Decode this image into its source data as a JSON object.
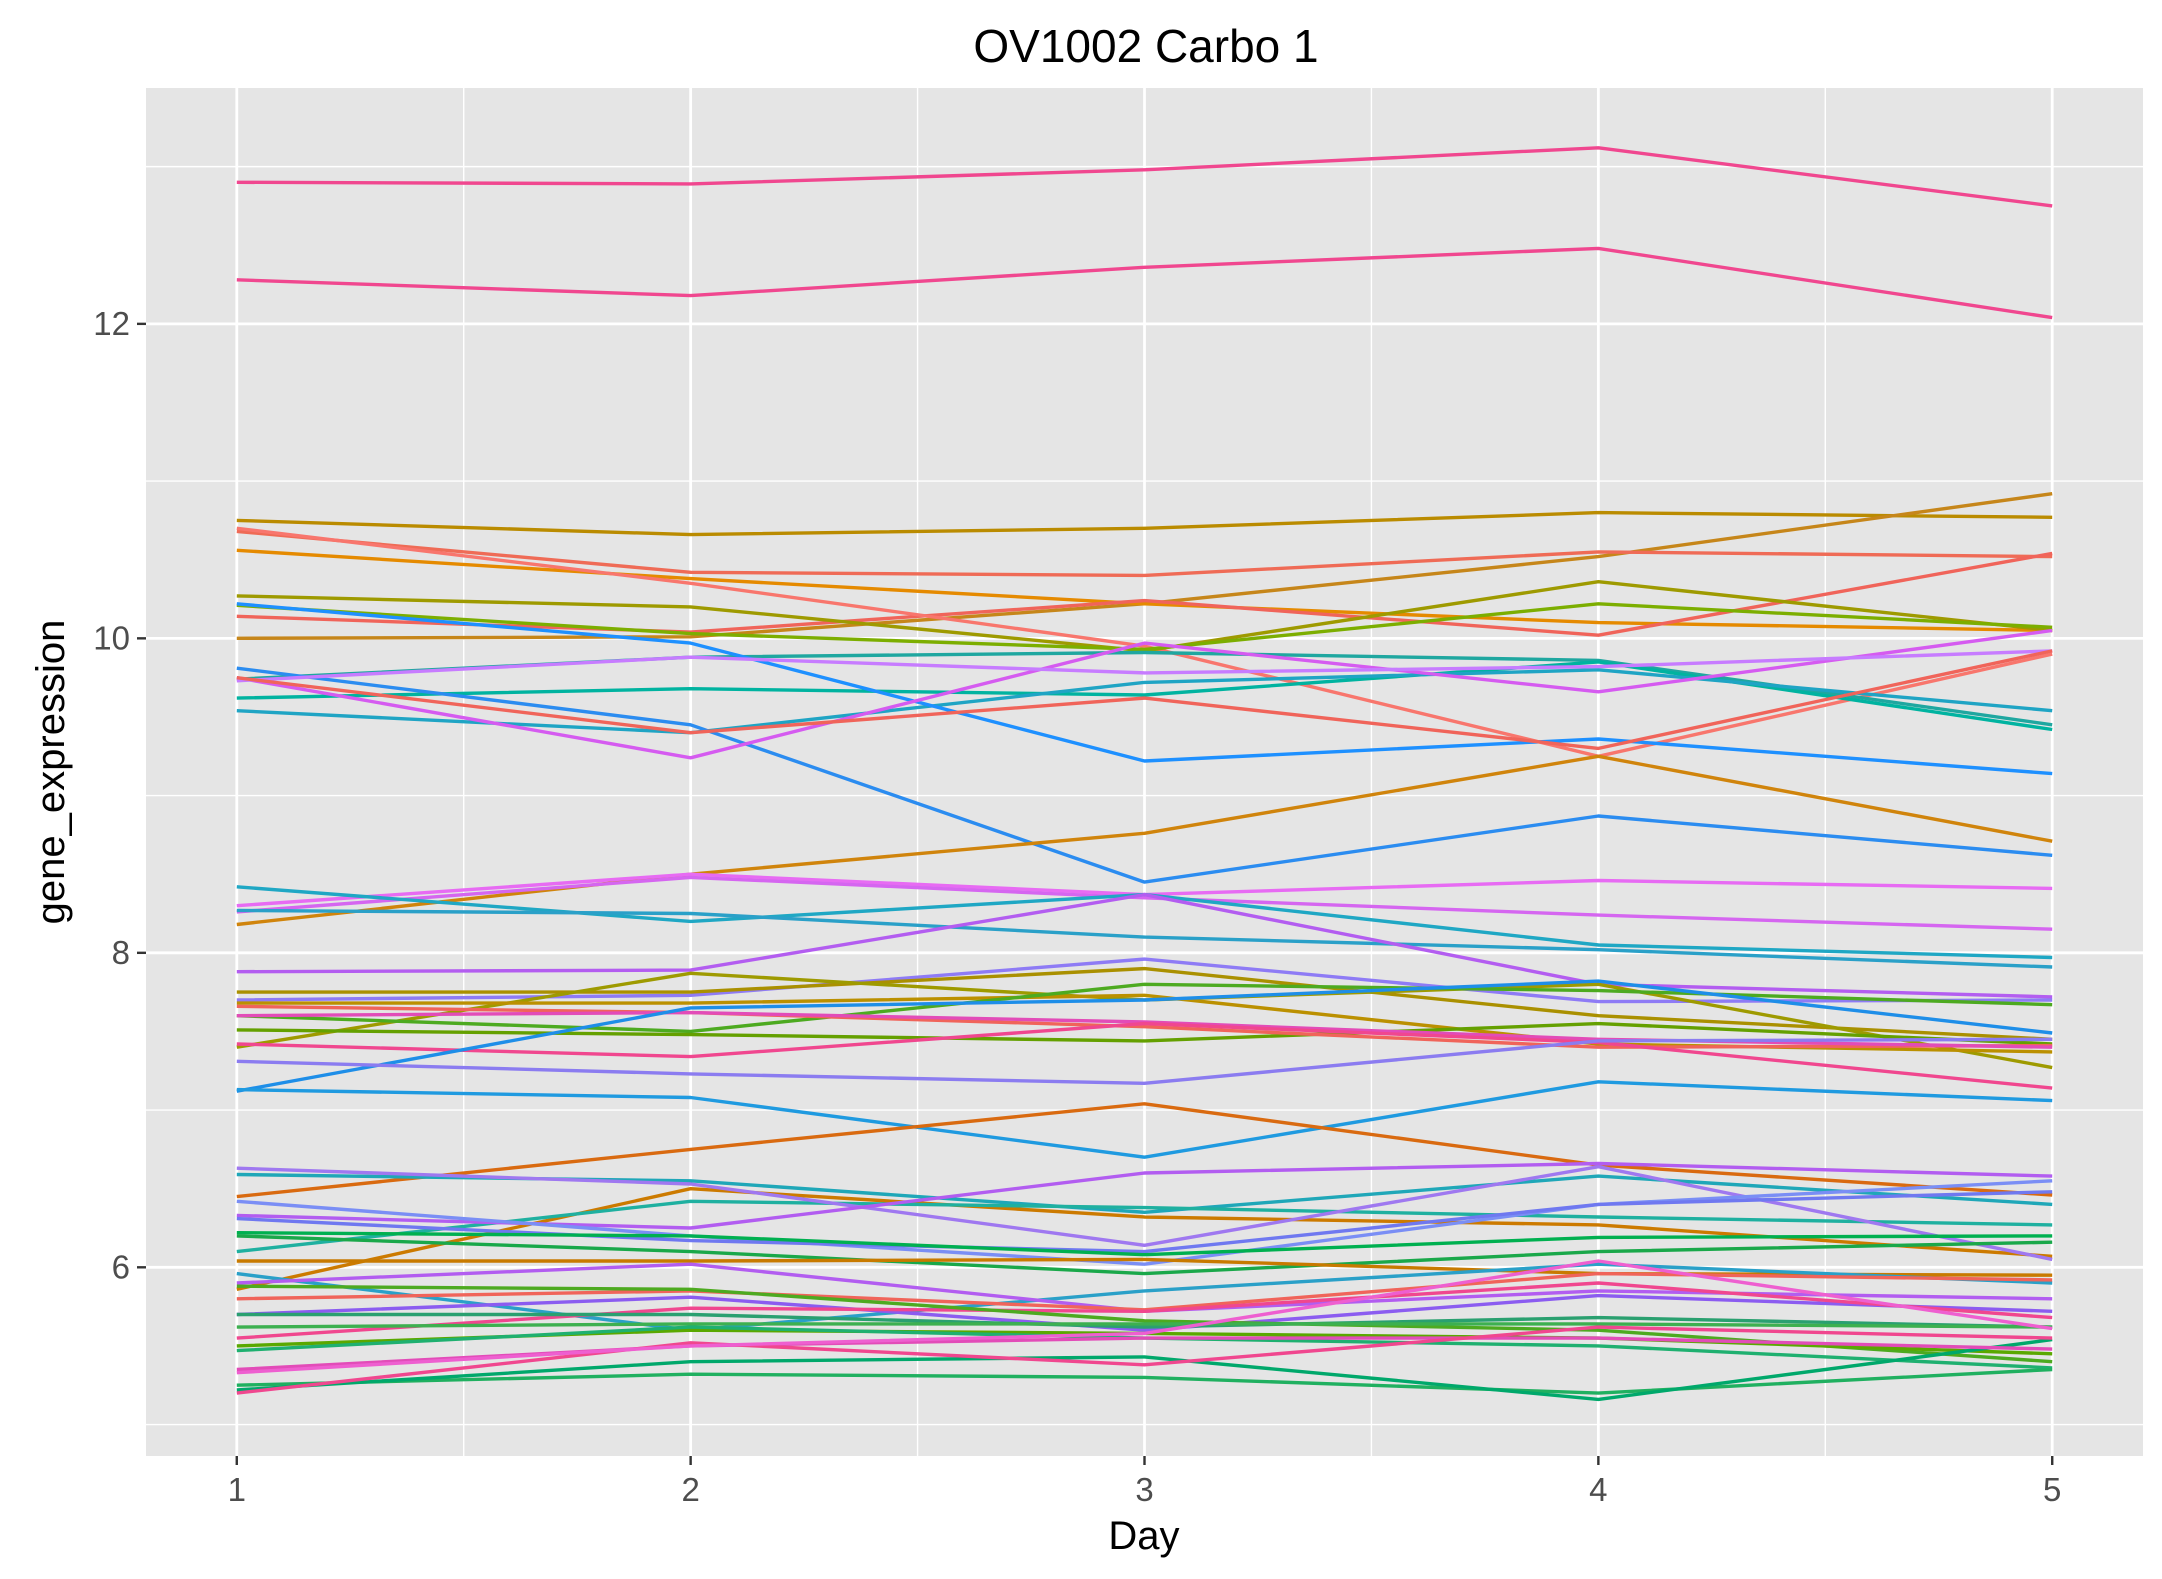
{
  "chart_data": {
    "type": "line",
    "title": "OV1002 Carbo 1",
    "xlabel": "Day",
    "ylabel": "gene_expression",
    "x": [
      1,
      2,
      3,
      4,
      5
    ],
    "xlim": [
      0.8,
      5.2
    ],
    "ylim": [
      4.8,
      13.5
    ],
    "x_ticks": [
      1,
      2,
      3,
      4,
      5
    ],
    "y_ticks": [
      6,
      8,
      10,
      12
    ],
    "grid": true,
    "legend": "none",
    "panel_background": "#e5e5e5",
    "grid_color": "#ffffff",
    "series": [
      {
        "color": "#f0478f",
        "values": [
          12.9,
          12.89,
          12.98,
          13.12,
          12.75
        ]
      },
      {
        "color": "#f0478f",
        "values": [
          12.28,
          12.18,
          12.36,
          12.48,
          12.04
        ]
      },
      {
        "color": "#ba8b00",
        "values": [
          10.75,
          10.66,
          10.7,
          10.8,
          10.77
        ]
      },
      {
        "color": "#c6861a",
        "values": [
          10.0,
          10.01,
          10.22,
          10.52,
          10.92
        ]
      },
      {
        "color": "#e58a00",
        "values": [
          10.56,
          10.38,
          10.22,
          10.1,
          10.05
        ]
      },
      {
        "color": "#ef6b56",
        "values": [
          10.68,
          10.42,
          10.4,
          10.55,
          10.52
        ]
      },
      {
        "color": "#f0645a",
        "values": [
          10.14,
          10.04,
          10.24,
          10.02,
          10.54
        ]
      },
      {
        "color": "#f8766d",
        "values": [
          10.7,
          10.35,
          9.95,
          9.25,
          9.9
        ]
      },
      {
        "color": "#9e9a00",
        "values": [
          10.27,
          10.2,
          9.92,
          10.36,
          10.05
        ]
      },
      {
        "color": "#7cae00",
        "values": [
          10.21,
          10.03,
          9.93,
          10.22,
          10.07
        ]
      },
      {
        "color": "#1fa7a0",
        "values": [
          9.74,
          9.88,
          9.91,
          9.86,
          9.45
        ]
      },
      {
        "color": "#00b3a0",
        "values": [
          9.62,
          9.68,
          9.64,
          9.85,
          9.42
        ]
      },
      {
        "color": "#1fa4c4",
        "values": [
          9.54,
          9.4,
          9.72,
          9.8,
          9.54
        ]
      },
      {
        "color": "#1e90ff",
        "values": [
          10.22,
          9.97,
          9.22,
          9.36,
          9.14
        ]
      },
      {
        "color": "#2b8cf0",
        "values": [
          9.81,
          9.45,
          8.45,
          8.87,
          8.62
        ]
      },
      {
        "color": "#d55bf0",
        "values": [
          9.75,
          9.24,
          9.97,
          9.66,
          10.05
        ]
      },
      {
        "color": "#c77cff",
        "values": [
          9.73,
          9.88,
          9.78,
          9.82,
          9.92
        ]
      },
      {
        "color": "#f0645a",
        "values": [
          9.75,
          9.4,
          9.62,
          9.3,
          9.92
        ]
      },
      {
        "color": "#d0840c",
        "values": [
          8.18,
          8.5,
          8.76,
          9.25,
          8.71
        ]
      },
      {
        "color": "#e76bf3",
        "values": [
          8.3,
          8.5,
          8.37,
          8.46,
          8.41
        ]
      },
      {
        "color": "#d566f0",
        "values": [
          8.26,
          8.48,
          8.35,
          8.24,
          8.15
        ]
      },
      {
        "color": "#1fa7c4",
        "values": [
          8.42,
          8.2,
          8.37,
          8.05,
          7.97
        ]
      },
      {
        "color": "#2aa0c8",
        "values": [
          8.27,
          8.25,
          8.1,
          8.02,
          7.91
        ]
      },
      {
        "color": "#b35df0",
        "values": [
          7.88,
          7.89,
          8.37,
          7.8,
          7.72
        ]
      },
      {
        "color": "#8e7bf5",
        "values": [
          7.7,
          7.73,
          7.96,
          7.69,
          7.7
        ]
      },
      {
        "color": "#aa9000",
        "values": [
          7.75,
          7.75,
          7.9,
          7.6,
          7.45
        ]
      },
      {
        "color": "#9e9a00",
        "values": [
          7.4,
          7.87,
          7.7,
          7.8,
          7.27
        ]
      },
      {
        "color": "#bb9000",
        "values": [
          7.68,
          7.68,
          7.73,
          7.42,
          7.37
        ]
      },
      {
        "color": "#4daa20",
        "values": [
          7.6,
          7.5,
          7.8,
          7.76,
          7.67
        ]
      },
      {
        "color": "#64a000",
        "values": [
          7.51,
          7.48,
          7.44,
          7.55,
          7.42
        ]
      },
      {
        "color": "#f0645a",
        "values": [
          7.66,
          7.62,
          7.53,
          7.4,
          7.41
        ]
      },
      {
        "color": "#e24cb8",
        "values": [
          7.6,
          7.62,
          7.56,
          7.45,
          7.4
        ]
      },
      {
        "color": "#f0478f",
        "values": [
          7.42,
          7.34,
          7.55,
          7.43,
          7.14
        ]
      },
      {
        "color": "#1e8ee8",
        "values": [
          7.12,
          7.65,
          7.7,
          7.82,
          7.49
        ]
      },
      {
        "color": "#8b7cf0",
        "values": [
          7.31,
          7.23,
          7.17,
          7.44,
          7.45
        ]
      },
      {
        "color": "#1f9ae0",
        "values": [
          7.13,
          7.08,
          6.7,
          7.18,
          7.06
        ]
      },
      {
        "color": "#d96a10",
        "values": [
          6.45,
          6.75,
          7.04,
          6.65,
          6.46
        ]
      },
      {
        "color": "#cc7a00",
        "values": [
          5.86,
          6.5,
          6.32,
          6.27,
          6.07
        ]
      },
      {
        "color": "#1fa7b8",
        "values": [
          6.59,
          6.55,
          6.35,
          6.58,
          6.4
        ]
      },
      {
        "color": "#1fb0a0",
        "values": [
          6.1,
          6.42,
          6.38,
          6.32,
          6.27
        ]
      },
      {
        "color": "#9f78f0",
        "values": [
          6.63,
          6.53,
          6.14,
          6.64,
          6.05
        ]
      },
      {
        "color": "#b25df0",
        "values": [
          6.33,
          6.25,
          6.6,
          6.66,
          6.58
        ]
      },
      {
        "color": "#7a8ef5",
        "values": [
          6.42,
          6.2,
          6.02,
          6.4,
          6.55
        ]
      },
      {
        "color": "#6f78f0",
        "values": [
          6.31,
          6.17,
          6.1,
          6.4,
          6.48
        ]
      },
      {
        "color": "#00b050",
        "values": [
          6.22,
          6.2,
          6.08,
          6.19,
          6.2
        ]
      },
      {
        "color": "#1aa84a",
        "values": [
          6.2,
          6.1,
          5.96,
          6.1,
          6.16
        ]
      },
      {
        "color": "#c87a00",
        "values": [
          6.04,
          6.04,
          6.05,
          5.96,
          5.95
        ]
      },
      {
        "color": "#2aa0c8",
        "values": [
          5.96,
          5.6,
          5.85,
          6.02,
          5.9
        ]
      },
      {
        "color": "#8b5cf0",
        "values": [
          5.7,
          5.81,
          5.6,
          5.82,
          5.72
        ]
      },
      {
        "color": "#b25df0",
        "values": [
          5.9,
          6.02,
          5.72,
          5.85,
          5.8
        ]
      },
      {
        "color": "#f0645a",
        "values": [
          5.8,
          5.85,
          5.73,
          5.96,
          5.92
        ]
      },
      {
        "color": "#f0478f",
        "values": [
          5.55,
          5.74,
          5.72,
          5.9,
          5.68
        ]
      },
      {
        "color": "#4daa20",
        "values": [
          5.88,
          5.86,
          5.66,
          5.6,
          5.4
        ]
      },
      {
        "color": "#2aa070",
        "values": [
          5.7,
          5.7,
          5.62,
          5.68,
          5.62
        ]
      },
      {
        "color": "#3db050",
        "values": [
          5.62,
          5.64,
          5.64,
          5.64,
          5.62
        ]
      },
      {
        "color": "#5aa800",
        "values": [
          5.5,
          5.6,
          5.58,
          5.55,
          5.45
        ]
      },
      {
        "color": "#1fb070",
        "values": [
          5.47,
          5.62,
          5.55,
          5.5,
          5.36
        ]
      },
      {
        "color": "#20b060",
        "values": [
          5.25,
          5.32,
          5.3,
          5.2,
          5.35
        ]
      },
      {
        "color": "#00a86b",
        "values": [
          5.22,
          5.4,
          5.43,
          5.16,
          5.54
        ]
      },
      {
        "color": "#e24cb8",
        "values": [
          5.35,
          5.5,
          5.55,
          5.55,
          5.48
        ]
      },
      {
        "color": "#f0478f",
        "values": [
          5.2,
          5.52,
          5.38,
          5.62,
          5.55
        ]
      },
      {
        "color": "#ee5fd0",
        "values": [
          5.33,
          5.5,
          5.58,
          6.04,
          5.61
        ]
      }
    ]
  }
}
